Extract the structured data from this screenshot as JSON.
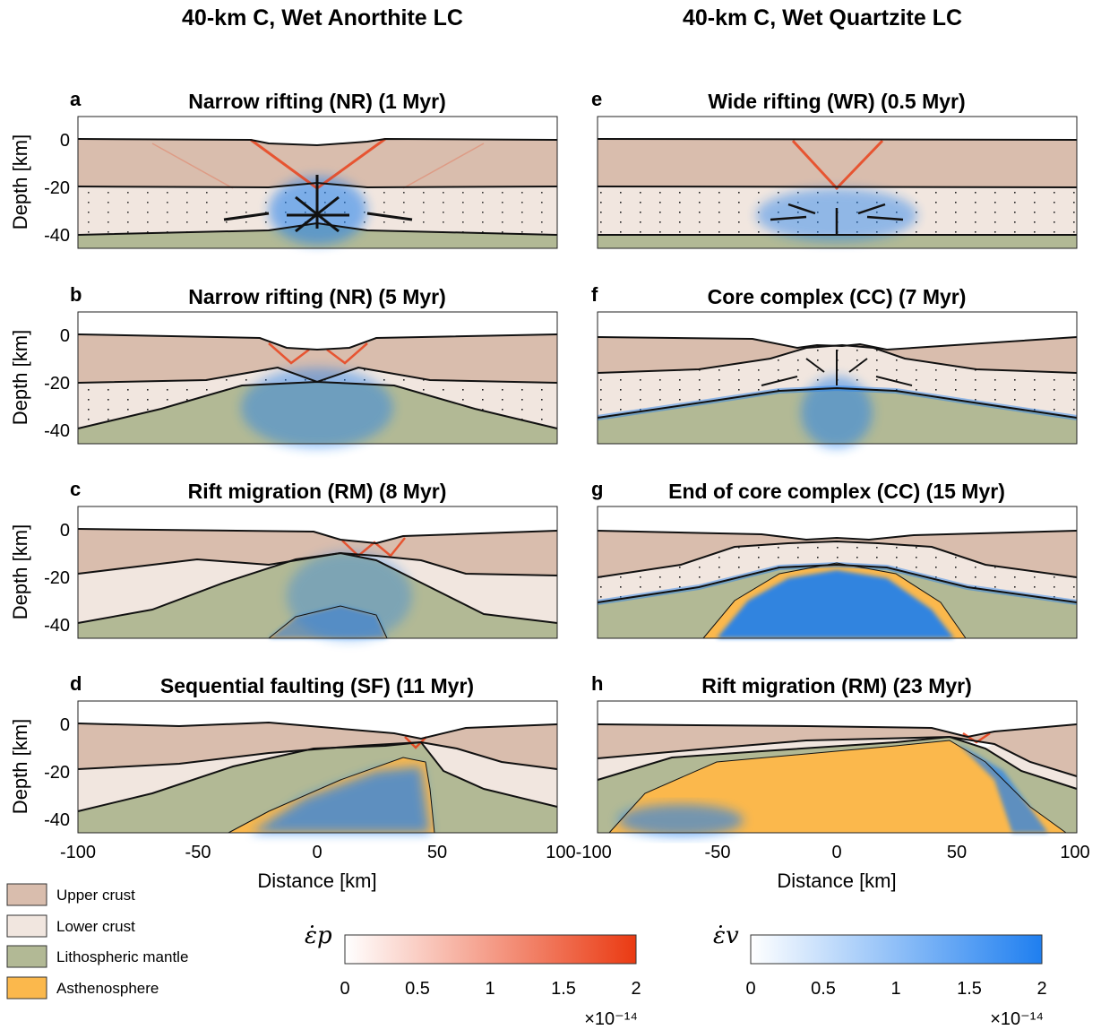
{
  "column_titles": [
    "40-km C, Wet Anorthite LC",
    "40-km C, Wet Quartzite LC"
  ],
  "panels": [
    {
      "letter": "a",
      "title": "Narrow rifting (NR) (1 Myr)"
    },
    {
      "letter": "b",
      "title": "Narrow rifting (NR) (5 Myr)"
    },
    {
      "letter": "c",
      "title": "Rift migration (RM) (8 Myr)"
    },
    {
      "letter": "d",
      "title": "Sequential faulting (SF) (11 Myr)"
    },
    {
      "letter": "e",
      "title": "Wide rifting (WR) (0.5 Myr)"
    },
    {
      "letter": "f",
      "title": "Core complex (CC) (7 Myr)"
    },
    {
      "letter": "g",
      "title": "End of core complex (CC) (15 Myr)"
    },
    {
      "letter": "h",
      "title": "Rift migration (RM) (23 Myr)"
    }
  ],
  "axes": {
    "ylabel": "Depth [km]",
    "xlabel": "Distance [km]",
    "yticks": [
      "0",
      "-20",
      "-40"
    ],
    "xticks_left": [
      "-100",
      "-50",
      "0",
      "50"
    ],
    "xticks_joined": "100-100",
    "xticks_right": [
      "-50",
      "0",
      "50",
      "100"
    ]
  },
  "legend": {
    "items": [
      {
        "label": "Upper crust",
        "color": "#d9bdad"
      },
      {
        "label": "Lower crust",
        "color": "#f1e6df"
      },
      {
        "label": "Lithospheric mantle",
        "color": "#b2b995"
      },
      {
        "label": "Asthenosphere",
        "color": "#fbb84c"
      }
    ]
  },
  "colorbars": [
    {
      "symbol": "ε̇p",
      "ticks": [
        "0",
        "0.5",
        "1",
        "1.5",
        "2"
      ],
      "scale": "×10⁻¹⁴",
      "from": "#ffffff",
      "to": "#ea3a12"
    },
    {
      "symbol": "ε̇v",
      "ticks": [
        "0",
        "0.5",
        "1",
        "1.5",
        "2"
      ],
      "scale": "×10⁻¹⁴",
      "from": "#ffffff",
      "to": "#1f7ff0"
    }
  ],
  "colors": {
    "upper_crust": "#d9bdad",
    "lower_crust": "#f1e6df",
    "mantle": "#b2b995",
    "asthenosphere": "#fbb84c",
    "plastic": "#ea3a12",
    "viscous": "#1f7ff0"
  }
}
